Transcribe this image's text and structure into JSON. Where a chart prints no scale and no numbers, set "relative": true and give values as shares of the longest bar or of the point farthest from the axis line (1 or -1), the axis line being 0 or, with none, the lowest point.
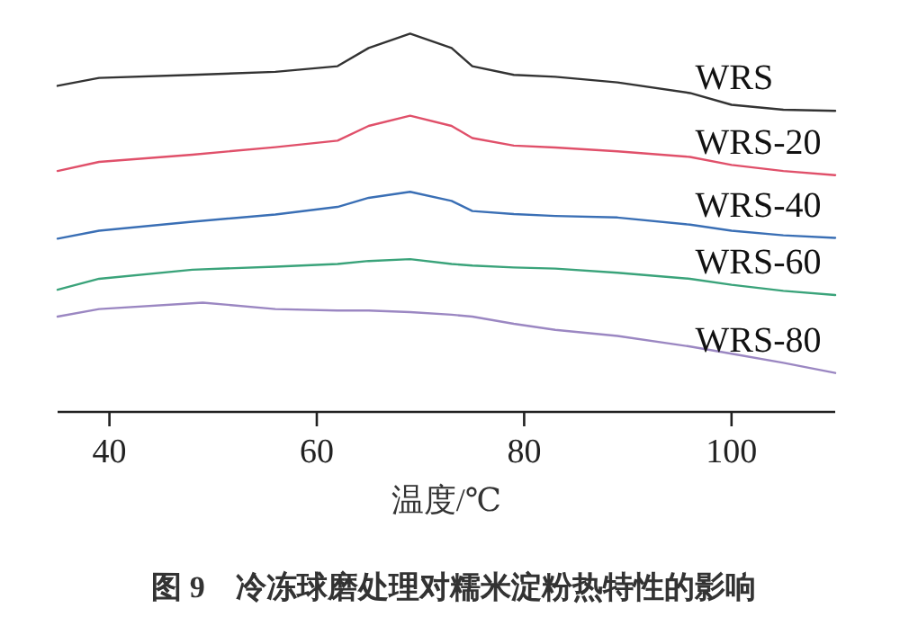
{
  "chart_data": {
    "type": "line",
    "relative": true,
    "xlabel": "温度/℃",
    "annotations": [
      "图 9　冷冻球磨处理对糯米淀粉热特性的影响"
    ],
    "xlim": [
      35,
      110
    ],
    "xticks": [
      40,
      60,
      80,
      100
    ],
    "x": [
      35,
      39,
      48,
      56,
      62,
      65,
      69,
      73,
      75,
      79,
      83,
      89,
      96,
      100,
      105,
      110
    ],
    "series": [
      {
        "name": "WRS",
        "color": "#333333",
        "values": [
          0.862,
          0.883,
          0.891,
          0.899,
          0.914,
          0.962,
          1.0,
          0.962,
          0.914,
          0.891,
          0.886,
          0.871,
          0.843,
          0.812,
          0.799,
          0.796
        ]
      },
      {
        "name": "WRS-20",
        "color": "#e0506a",
        "values": [
          0.637,
          0.661,
          0.68,
          0.7,
          0.717,
          0.756,
          0.783,
          0.756,
          0.724,
          0.704,
          0.699,
          0.689,
          0.674,
          0.653,
          0.637,
          0.626
        ]
      },
      {
        "name": "WRS-40",
        "color": "#3a6fb5",
        "values": [
          0.458,
          0.479,
          0.503,
          0.522,
          0.542,
          0.566,
          0.582,
          0.558,
          0.531,
          0.523,
          0.518,
          0.514,
          0.495,
          0.479,
          0.467,
          0.46
        ]
      },
      {
        "name": "WRS-60",
        "color": "#3aa37a",
        "values": [
          0.323,
          0.352,
          0.376,
          0.384,
          0.391,
          0.399,
          0.404,
          0.391,
          0.387,
          0.382,
          0.379,
          0.368,
          0.352,
          0.336,
          0.32,
          0.309
        ]
      },
      {
        "name": "WRS-80",
        "color": "#9b87c2",
        "x": [
          35,
          39,
          49,
          56,
          62,
          65,
          69,
          73,
          75,
          79,
          83,
          89,
          96,
          100,
          105,
          110
        ],
        "values": [
          0.252,
          0.272,
          0.289,
          0.272,
          0.268,
          0.268,
          0.264,
          0.257,
          0.252,
          0.233,
          0.217,
          0.201,
          0.173,
          0.154,
          0.13,
          0.103
        ]
      }
    ]
  }
}
